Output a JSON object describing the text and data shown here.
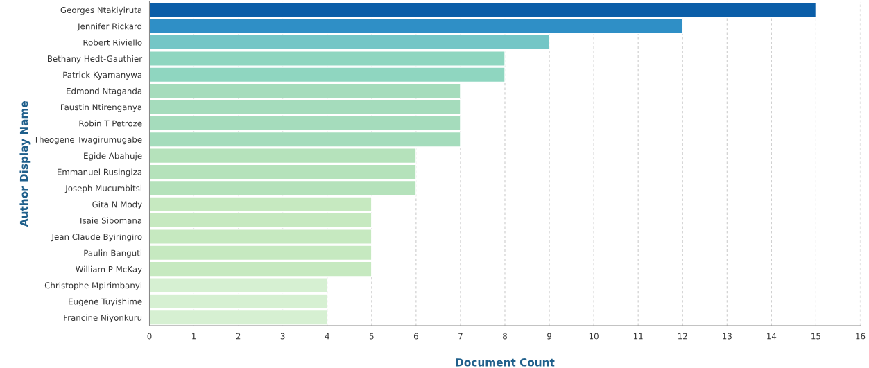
{
  "chart_data": {
    "type": "bar",
    "orientation": "horizontal",
    "xlabel": "Document Count",
    "ylabel": "Author Display Name",
    "categories": [
      "Georges Ntakiyiruta",
      "Jennifer Rickard",
      "Robert Riviello",
      "Bethany Hedt-Gauthier",
      "Patrick Kyamanywa",
      "Edmond Ntaganda",
      "Faustin Ntirenganya",
      "Robin T Petroze",
      "Theogene Twagirumugabe",
      "Egide Abahuje",
      "Emmanuel Rusingiza",
      "Joseph Mucumbitsi",
      "Gita N Mody",
      "Isaie Sibomana",
      "Jean Claude Byiringiro",
      "Paulin Banguti",
      "William P McKay",
      "Christophe Mpirimbanyi",
      "Eugene Tuyishime",
      "Francine Niyonkuru"
    ],
    "values": [
      15,
      12,
      9,
      8,
      8,
      7,
      7,
      7,
      7,
      6,
      6,
      6,
      5,
      5,
      5,
      5,
      5,
      4,
      4,
      4
    ],
    "colors": [
      "#0b5ea8",
      "#2f8fc6",
      "#74c6c6",
      "#8fd6c0",
      "#8fd6c0",
      "#a5dcbc",
      "#a5dcbc",
      "#a5dcbc",
      "#a5dcbc",
      "#b5e2bb",
      "#b5e2bb",
      "#b5e2bb",
      "#c6e9c0",
      "#c6e9c0",
      "#c6e9c0",
      "#c6e9c0",
      "#c6e9c0",
      "#d6f0d2",
      "#d6f0d2",
      "#d6f0d2"
    ],
    "xlim": [
      0,
      16
    ],
    "xticks": [
      0,
      1,
      2,
      3,
      4,
      5,
      6,
      7,
      8,
      9,
      10,
      11,
      12,
      13,
      14,
      15,
      16
    ],
    "grid": "x",
    "legend": false
  }
}
